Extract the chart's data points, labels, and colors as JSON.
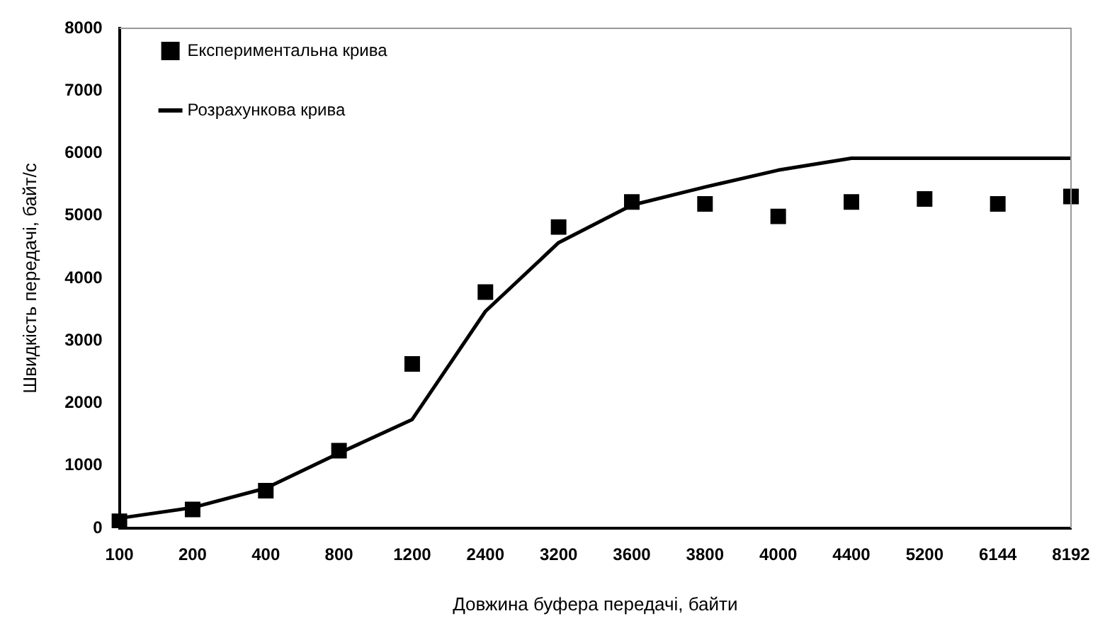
{
  "chart_data": {
    "type": "line",
    "xlabel": "Довжина буфера передачі, байти",
    "ylabel": "Швидкість передачі, байт/с",
    "categories": [
      "100",
      "200",
      "400",
      "800",
      "1200",
      "2400",
      "3200",
      "3600",
      "3800",
      "4000",
      "4400",
      "5200",
      "6144",
      "8192"
    ],
    "series": [
      {
        "name": "Експериментальна крива",
        "type": "scatter",
        "marker": "square",
        "color": "#000000",
        "values": [
          110,
          300,
          600,
          1240,
          2630,
          3780,
          4820,
          5220,
          5190,
          4990,
          5220,
          5270,
          5190,
          5310
        ]
      },
      {
        "name": "Розрахункова крива",
        "type": "line",
        "marker": "none",
        "line_style": "solid",
        "color": "#000000",
        "values": [
          160,
          330,
          640,
          1200,
          1740,
          3470,
          4570,
          5170,
          5460,
          5730,
          5920,
          5920,
          5920,
          5920
        ]
      }
    ],
    "ylim": [
      0,
      8000
    ],
    "yticks": [
      0,
      1000,
      2000,
      3000,
      4000,
      5000,
      6000,
      7000,
      8000
    ],
    "grid": false,
    "legend": "top left"
  }
}
